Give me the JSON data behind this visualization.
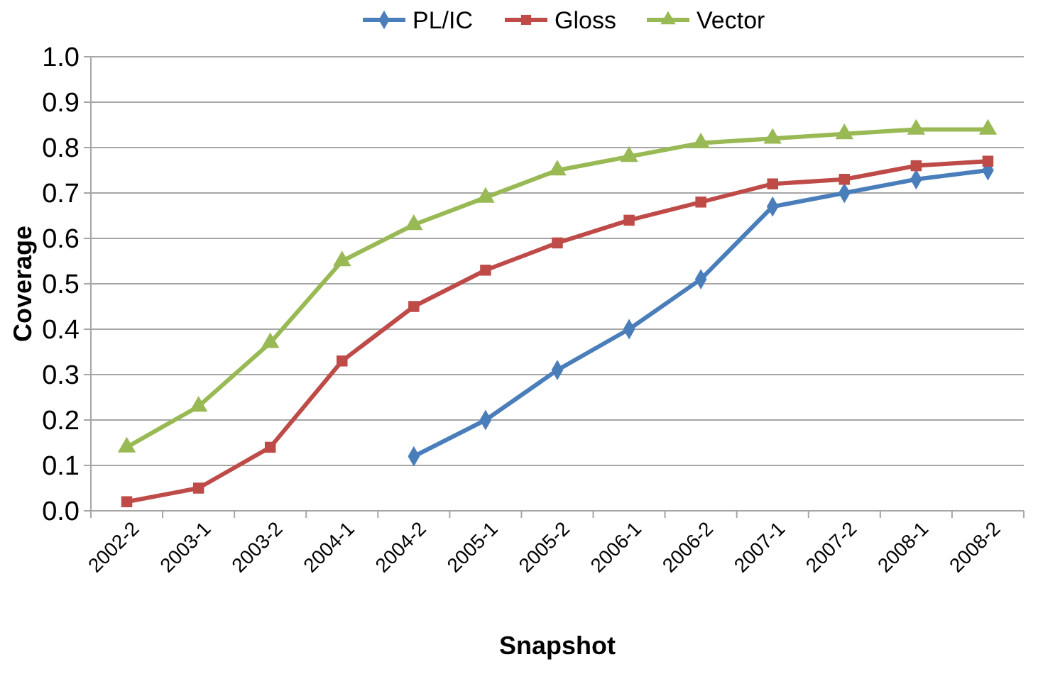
{
  "chart_data": {
    "type": "line",
    "xlabel": "Snapshot",
    "ylabel": "Coverage",
    "categories": [
      "2002-2",
      "2003-1",
      "2003-2",
      "2004-1",
      "2004-2",
      "2005-1",
      "2005-2",
      "2006-1",
      "2006-2",
      "2007-1",
      "2007-2",
      "2008-1",
      "2008-2"
    ],
    "series": [
      {
        "name": "PL/IC",
        "color": "#4a7ebb",
        "marker": "diamond",
        "values": [
          null,
          null,
          null,
          null,
          0.12,
          0.2,
          0.31,
          0.4,
          0.51,
          0.67,
          0.7,
          0.73,
          0.75
        ]
      },
      {
        "name": "Gloss",
        "color": "#be4b48",
        "marker": "square",
        "values": [
          0.02,
          0.05,
          0.14,
          0.33,
          0.45,
          0.53,
          0.59,
          0.64,
          0.68,
          0.72,
          0.73,
          0.76,
          0.77
        ]
      },
      {
        "name": "Vector",
        "color": "#98b954",
        "marker": "triangle",
        "values": [
          0.14,
          0.23,
          0.37,
          0.55,
          0.63,
          0.69,
          0.75,
          0.78,
          0.81,
          0.82,
          0.83,
          0.84,
          0.84
        ]
      }
    ],
    "ylim": [
      0,
      1
    ],
    "yticks": [
      {
        "value": 0,
        "label": "0.0"
      },
      0.1,
      0.2,
      0.3,
      0.4,
      0.5,
      0.6,
      0.7,
      0.8,
      0.9,
      {
        "value": 1,
        "label": "1.0"
      }
    ],
    "grid": "y",
    "legend": "top"
  }
}
